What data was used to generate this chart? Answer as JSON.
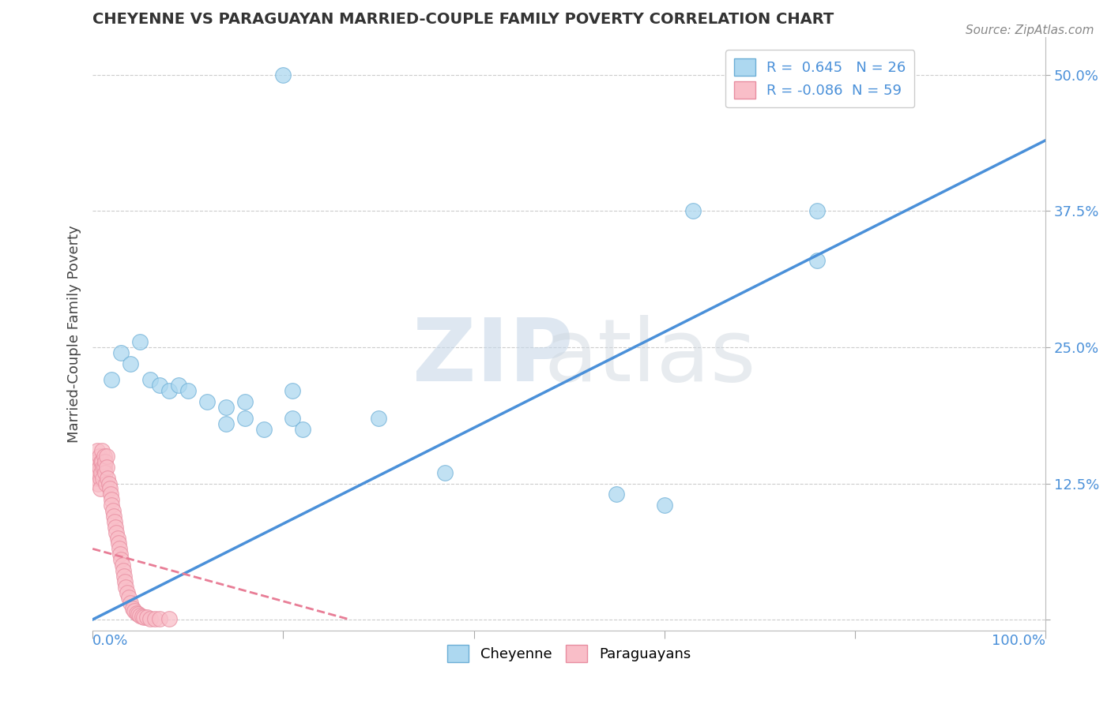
{
  "title": "CHEYENNE VS PARAGUAYAN MARRIED-COUPLE FAMILY POVERTY CORRELATION CHART",
  "source": "Source: ZipAtlas.com",
  "ylabel": "Married-Couple Family Poverty",
  "yticks": [
    0.0,
    0.125,
    0.25,
    0.375,
    0.5
  ],
  "ytick_labels": [
    "",
    "12.5%",
    "25.0%",
    "37.5%",
    "50.0%"
  ],
  "xlim": [
    0.0,
    1.0
  ],
  "ylim": [
    -0.01,
    0.535
  ],
  "cheyenne_R": 0.645,
  "cheyenne_N": 26,
  "paraguayan_R": -0.086,
  "paraguayan_N": 59,
  "cheyenne_color": "#ADD8F0",
  "paraguayan_color": "#F9BEC8",
  "cheyenne_edge_color": "#6BAED6",
  "paraguayan_edge_color": "#E88DA0",
  "cheyenne_line_color": "#4A90D9",
  "paraguayan_line_color": "#E87D96",
  "background_color": "#FFFFFF",
  "cheyenne_x": [
    0.2,
    0.03,
    0.05,
    0.06,
    0.07,
    0.08,
    0.12,
    0.14,
    0.16,
    0.21,
    0.63,
    0.76,
    0.21,
    0.3,
    0.37,
    0.55,
    0.6,
    0.76,
    0.02,
    0.04,
    0.09,
    0.1,
    0.14,
    0.16,
    0.18,
    0.22
  ],
  "cheyenne_y": [
    0.5,
    0.245,
    0.255,
    0.22,
    0.215,
    0.21,
    0.2,
    0.195,
    0.2,
    0.185,
    0.375,
    0.375,
    0.21,
    0.185,
    0.135,
    0.115,
    0.105,
    0.33,
    0.22,
    0.235,
    0.215,
    0.21,
    0.18,
    0.185,
    0.175,
    0.175
  ],
  "paraguayan_x": [
    0.003,
    0.004,
    0.005,
    0.005,
    0.006,
    0.006,
    0.007,
    0.007,
    0.008,
    0.008,
    0.009,
    0.009,
    0.01,
    0.01,
    0.011,
    0.011,
    0.012,
    0.012,
    0.013,
    0.013,
    0.014,
    0.015,
    0.015,
    0.016,
    0.017,
    0.018,
    0.019,
    0.02,
    0.02,
    0.021,
    0.022,
    0.023,
    0.024,
    0.025,
    0.026,
    0.027,
    0.028,
    0.029,
    0.03,
    0.031,
    0.032,
    0.033,
    0.034,
    0.035,
    0.036,
    0.038,
    0.04,
    0.042,
    0.044,
    0.046,
    0.048,
    0.05,
    0.052,
    0.054,
    0.057,
    0.06,
    0.065,
    0.07,
    0.08
  ],
  "paraguayan_y": [
    0.14,
    0.13,
    0.155,
    0.145,
    0.135,
    0.125,
    0.15,
    0.14,
    0.13,
    0.12,
    0.145,
    0.135,
    0.155,
    0.145,
    0.14,
    0.13,
    0.15,
    0.14,
    0.145,
    0.135,
    0.125,
    0.15,
    0.14,
    0.13,
    0.125,
    0.12,
    0.115,
    0.11,
    0.105,
    0.1,
    0.095,
    0.09,
    0.085,
    0.08,
    0.075,
    0.07,
    0.065,
    0.06,
    0.055,
    0.05,
    0.045,
    0.04,
    0.035,
    0.03,
    0.025,
    0.02,
    0.015,
    0.01,
    0.008,
    0.006,
    0.005,
    0.004,
    0.003,
    0.002,
    0.002,
    0.001,
    0.001,
    0.001,
    0.001
  ],
  "cheyenne_line_x": [
    0.0,
    1.0
  ],
  "cheyenne_line_y": [
    0.0,
    0.44
  ],
  "paraguayan_line_x": [
    0.0,
    0.27
  ],
  "paraguayan_line_y": [
    0.065,
    0.0
  ]
}
